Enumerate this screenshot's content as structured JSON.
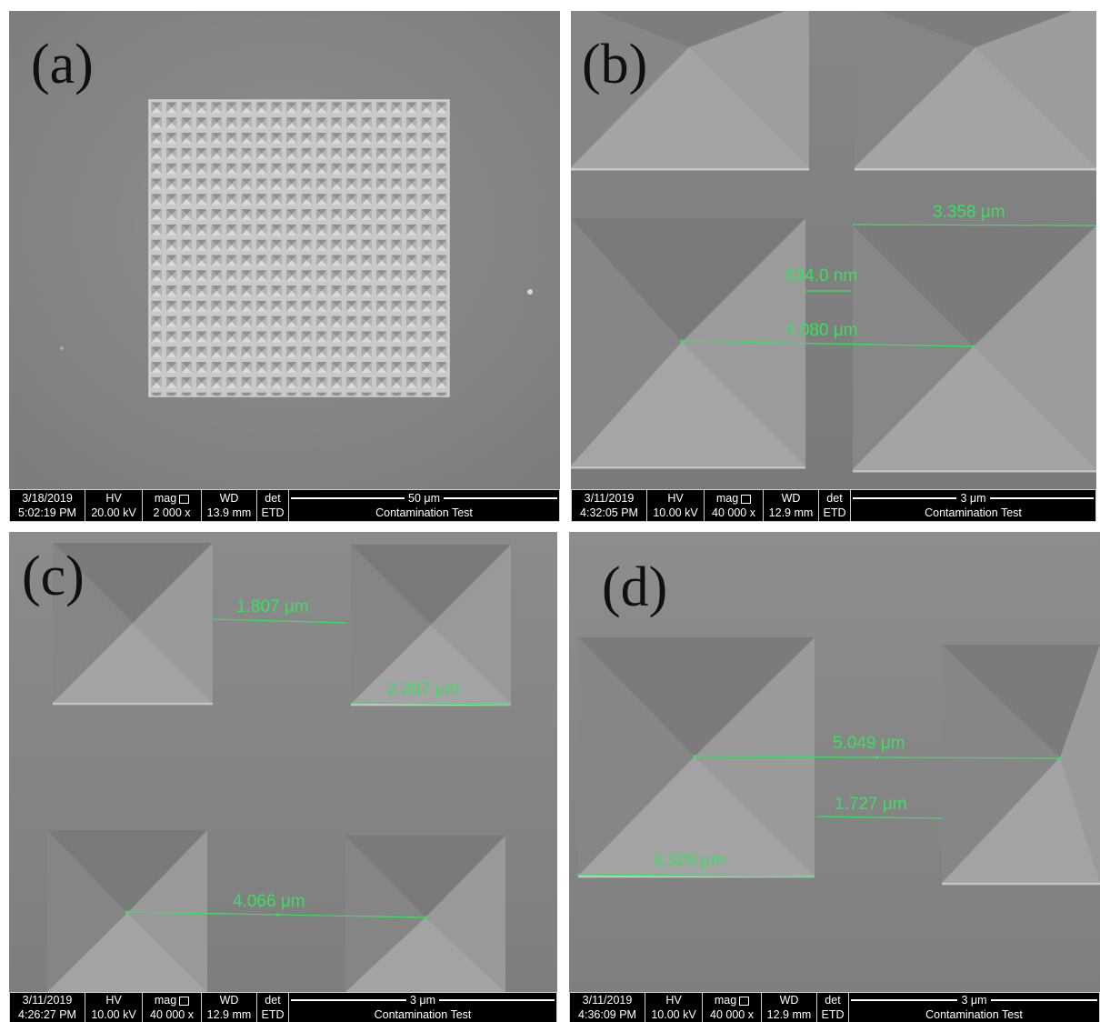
{
  "figure": {
    "panels": [
      {
        "letter": "(a)",
        "measurements": [],
        "databar": {
          "date": "3/18/2019",
          "time": "5:02:19 PM",
          "hv_label": "HV",
          "hv": "20.00 kV",
          "mag_label": "mag",
          "mag": "2 000 x",
          "wd_label": "WD",
          "wd": "13.9 mm",
          "det_label": "det",
          "det": "ETD",
          "scale": "50 μm",
          "title": "Contamination Test"
        }
      },
      {
        "letter": "(b)",
        "measurements": [
          "3.358 μm",
          "634.0 nm",
          "4.080 μm"
        ],
        "databar": {
          "date": "3/11/2019",
          "time": "4:32:05 PM",
          "hv_label": "HV",
          "hv": "10.00 kV",
          "mag_label": "mag",
          "mag": "40 000 x",
          "wd_label": "WD",
          "wd": "12.9 mm",
          "det_label": "det",
          "det": "ETD",
          "scale": "3 μm",
          "title": "Contamination Test"
        }
      },
      {
        "letter": "(c)",
        "measurements": [
          "1.807 μm",
          "2.207 μm",
          "4.066 μm"
        ],
        "databar": {
          "date": "3/11/2019",
          "time": "4:26:27 PM",
          "hv_label": "HV",
          "hv": "10.00 kV",
          "mag_label": "mag",
          "mag": "40 000 x",
          "wd_label": "WD",
          "wd": "12.9 mm",
          "det_label": "det",
          "det": "ETD",
          "scale": "3 μm",
          "title": "Contamination Test"
        }
      },
      {
        "letter": "(d)",
        "measurements": [
          "5.049 μm",
          "1.727 μm",
          "3.329 μm"
        ],
        "databar": {
          "date": "3/11/2019",
          "time": "4:36:09 PM",
          "hv_label": "HV",
          "hv": "10.00 kV",
          "mag_label": "mag",
          "mag": "40 000 x",
          "wd_label": "WD",
          "wd": "12.9 mm",
          "det_label": "det",
          "det": "ETD",
          "scale": "3 μm",
          "title": "Contamination Test"
        }
      }
    ],
    "colors": {
      "measurement": "#38e060",
      "substrate": "#8c8c8c",
      "databar": "#000000"
    }
  }
}
